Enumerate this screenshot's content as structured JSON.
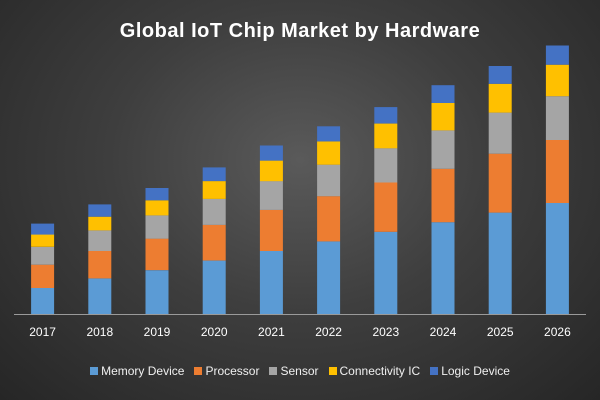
{
  "chart_data": {
    "type": "bar",
    "stacked": true,
    "title": "Global IoT Chip Market by Hardware",
    "xlabel": "",
    "ylabel": "",
    "categories": [
      "2017",
      "2018",
      "2019",
      "2020",
      "2021",
      "2022",
      "2023",
      "2024",
      "2025",
      "2026"
    ],
    "ylim": [
      0,
      200
    ],
    "grid": false,
    "legend_position": "bottom",
    "series": [
      {
        "name": "Memory Device",
        "color": "#5b9bd5",
        "values": [
          19,
          26,
          32,
          39,
          46,
          53,
          60,
          67,
          74,
          81
        ]
      },
      {
        "name": "Processor",
        "color": "#ed7d31",
        "values": [
          17,
          20,
          23,
          26,
          30,
          33,
          36,
          39,
          43,
          46
        ]
      },
      {
        "name": "Sensor",
        "color": "#a5a5a5",
        "values": [
          13,
          15,
          17,
          19,
          21,
          23,
          25,
          28,
          30,
          32
        ]
      },
      {
        "name": "Connectivity IC",
        "color": "#ffc000",
        "values": [
          9,
          10,
          11,
          13,
          15,
          17,
          18,
          20,
          21,
          23
        ]
      },
      {
        "name": "Logic Device",
        "color": "#4472c4",
        "values": [
          8,
          9,
          9,
          10,
          11,
          11,
          12,
          13,
          13,
          14
        ]
      }
    ]
  }
}
